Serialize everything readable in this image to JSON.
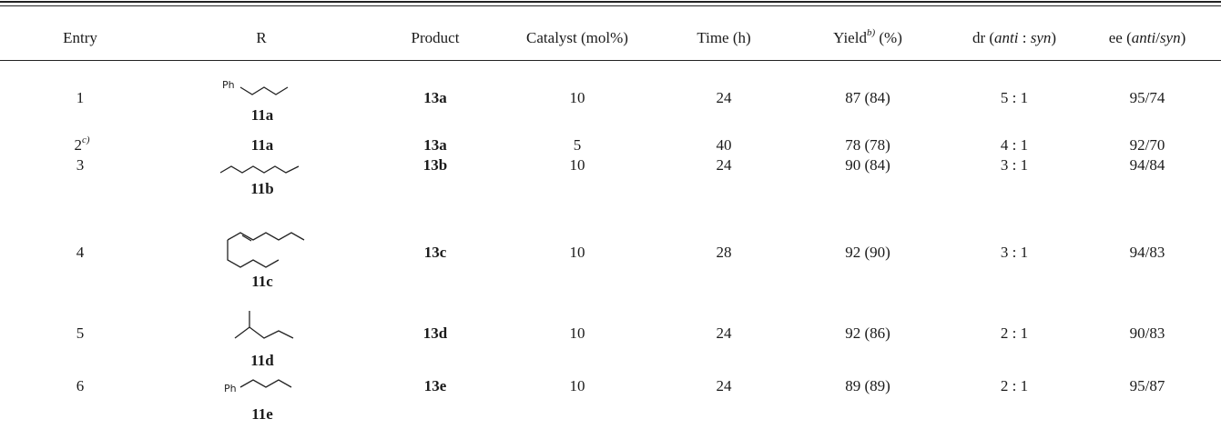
{
  "table": {
    "headers": {
      "entry": "Entry",
      "r": "R",
      "product": "Product",
      "catalyst": "Catalyst (mol%)",
      "time": "Time (h)",
      "yield_main": "Yield",
      "yield_sup": "b)",
      "yield_unit": " (%)",
      "dr_pre": "dr (",
      "dr_anti": "anti",
      "dr_sep": " : ",
      "dr_syn": "syn",
      "dr_post": ")",
      "ee_pre": "ee (",
      "ee_anti": "anti",
      "ee_sep": "/",
      "ee_syn": "syn",
      "ee_post": ")"
    },
    "rows": [
      {
        "entry": "1",
        "entry_sup": "",
        "r_label": "11a",
        "r_struct_label": "Ph",
        "product": "13a",
        "catalyst": "10",
        "time": "24",
        "yield": "87 (84)",
        "dr": "5 : 1",
        "ee": "95/74"
      },
      {
        "entry": "2",
        "entry_sup": "c)",
        "r_label": "11a",
        "r_struct_label": "",
        "product": "13a",
        "catalyst": "5",
        "time": "40",
        "yield": "78 (78)",
        "dr": "4 : 1",
        "ee": "92/70"
      },
      {
        "entry": "3",
        "entry_sup": "",
        "r_label": "11b",
        "r_struct_label": "",
        "product": "13b",
        "catalyst": "10",
        "time": "24",
        "yield": "90 (84)",
        "dr": "3 : 1",
        "ee": "94/84"
      },
      {
        "entry": "4",
        "entry_sup": "",
        "r_label": "11c",
        "r_struct_label": "",
        "product": "13c",
        "catalyst": "10",
        "time": "28",
        "yield": "92 (90)",
        "dr": "3 : 1",
        "ee": "94/83"
      },
      {
        "entry": "5",
        "entry_sup": "",
        "r_label": "11d",
        "r_struct_label": "",
        "product": "13d",
        "catalyst": "10",
        "time": "24",
        "yield": "92 (86)",
        "dr": "2 : 1",
        "ee": "90/83"
      },
      {
        "entry": "6",
        "entry_sup": "",
        "r_label": "11e",
        "r_struct_label": "Ph",
        "product": "13e",
        "catalyst": "10",
        "time": "24",
        "yield": "89 (89)",
        "dr": "2 : 1",
        "ee": "95/87"
      }
    ]
  }
}
